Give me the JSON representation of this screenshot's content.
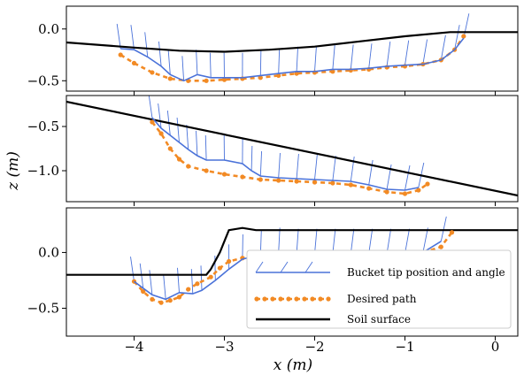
{
  "chart_data": {
    "type": "line",
    "xlabel": "x  (m)",
    "ylabel": "z  (m)",
    "xlim": [
      -4.75,
      0.25
    ],
    "xticks": [
      -4,
      -3,
      -2,
      -1,
      0
    ],
    "xtick_labels": [
      "−4",
      "−3",
      "−2",
      "−1",
      "0"
    ],
    "legend": {
      "placement": "lower-right of bottom panel",
      "entries": [
        {
          "label": "Bucket tip position and angle",
          "color": "#4a72d9",
          "style": "solid-with-angle-marks"
        },
        {
          "label": "Desired path",
          "color": "#f28a24",
          "style": "dashed-dots"
        },
        {
          "label": "Soil surface",
          "color": "#000000",
          "style": "solid-thick"
        }
      ]
    },
    "panels": [
      {
        "ylim": [
          -0.6,
          0.22
        ],
        "yticks": [
          0.0,
          -0.5
        ],
        "ytick_labels": [
          "0.0",
          "−0.5"
        ],
        "soil_surface": {
          "x": [
            -4.75,
            -4.0,
            -3.5,
            -3.0,
            -2.5,
            -2.0,
            -1.5,
            -1.0,
            -0.5,
            0.25
          ],
          "y": [
            -0.13,
            -0.18,
            -0.21,
            -0.22,
            -0.2,
            -0.17,
            -0.12,
            -0.07,
            -0.03,
            -0.03
          ]
        },
        "desired_path": {
          "x": [
            -4.15,
            -4.0,
            -3.8,
            -3.6,
            -3.4,
            -3.2,
            -3.0,
            -2.8,
            -2.6,
            -2.4,
            -2.2,
            -2.0,
            -1.8,
            -1.6,
            -1.4,
            -1.2,
            -1.0,
            -0.8,
            -0.6,
            -0.45,
            -0.35
          ],
          "y": [
            -0.25,
            -0.33,
            -0.42,
            -0.48,
            -0.5,
            -0.5,
            -0.49,
            -0.48,
            -0.47,
            -0.45,
            -0.43,
            -0.42,
            -0.41,
            -0.4,
            -0.39,
            -0.37,
            -0.36,
            -0.34,
            -0.3,
            -0.2,
            -0.07
          ]
        },
        "bucket_tip": {
          "x": [
            -4.15,
            -4.0,
            -3.85,
            -3.7,
            -3.6,
            -3.45,
            -3.3,
            -3.15,
            -3.0,
            -2.8,
            -2.6,
            -2.4,
            -2.2,
            -2.0,
            -1.8,
            -1.6,
            -1.4,
            -1.2,
            -1.0,
            -0.8,
            -0.6,
            -0.45,
            -0.35
          ],
          "y": [
            -0.19,
            -0.2,
            -0.27,
            -0.36,
            -0.44,
            -0.5,
            -0.44,
            -0.47,
            -0.47,
            -0.47,
            -0.45,
            -0.43,
            -0.41,
            -0.41,
            -0.39,
            -0.39,
            -0.38,
            -0.36,
            -0.35,
            -0.34,
            -0.3,
            -0.2,
            -0.09
          ]
        }
      },
      {
        "ylim": [
          -1.35,
          -0.15
        ],
        "yticks": [
          -0.5,
          -1.0
        ],
        "ytick_labels": [
          "−0.5",
          "−1.0"
        ],
        "soil_surface": {
          "x": [
            -4.75,
            0.25
          ],
          "y": [
            -0.22,
            -1.28
          ]
        },
        "desired_path": {
          "x": [
            -3.8,
            -3.7,
            -3.6,
            -3.5,
            -3.4,
            -3.2,
            -3.0,
            -2.8,
            -2.6,
            -2.4,
            -2.2,
            -2.0,
            -1.8,
            -1.6,
            -1.4,
            -1.2,
            -1.0,
            -0.85,
            -0.75
          ],
          "y": [
            -0.45,
            -0.58,
            -0.75,
            -0.87,
            -0.95,
            -1.0,
            -1.04,
            -1.07,
            -1.1,
            -1.11,
            -1.12,
            -1.13,
            -1.14,
            -1.16,
            -1.2,
            -1.24,
            -1.26,
            -1.22,
            -1.15
          ]
        },
        "bucket_tip": {
          "x": [
            -3.8,
            -3.7,
            -3.6,
            -3.5,
            -3.4,
            -3.3,
            -3.2,
            -3.0,
            -2.8,
            -2.7,
            -2.6,
            -2.4,
            -2.2,
            -2.0,
            -1.8,
            -1.6,
            -1.4,
            -1.2,
            -1.0,
            -0.85
          ],
          "y": [
            -0.4,
            -0.52,
            -0.6,
            -0.68,
            -0.76,
            -0.83,
            -0.88,
            -0.88,
            -0.92,
            -1.0,
            -1.06,
            -1.08,
            -1.09,
            -1.1,
            -1.11,
            -1.12,
            -1.16,
            -1.21,
            -1.22,
            -1.19
          ]
        }
      },
      {
        "ylim": [
          -0.75,
          0.4
        ],
        "yticks": [
          0.0,
          -0.5
        ],
        "ytick_labels": [
          "0.0",
          "−0.5"
        ],
        "soil_surface": {
          "x": [
            -4.75,
            -3.2,
            -3.15,
            -3.05,
            -2.95,
            -2.8,
            -2.65,
            -0.5,
            0.25
          ],
          "y": [
            -0.2,
            -0.2,
            -0.15,
            0.0,
            0.2,
            0.22,
            0.2,
            0.2,
            0.2
          ]
        },
        "desired_path": {
          "x": [
            -4.0,
            -3.9,
            -3.8,
            -3.7,
            -3.6,
            -3.5,
            -3.4,
            -3.3,
            -3.15,
            -3.05,
            -2.95,
            -2.8,
            -2.6,
            -2.4,
            -2.2,
            -2.0,
            -1.8,
            -1.6,
            -1.4,
            -1.2,
            -1.0,
            -0.8,
            -0.6,
            -0.48
          ],
          "y": [
            -0.26,
            -0.35,
            -0.42,
            -0.45,
            -0.43,
            -0.4,
            -0.33,
            -0.28,
            -0.22,
            -0.14,
            -0.08,
            -0.05,
            -0.03,
            -0.02,
            -0.02,
            -0.02,
            -0.02,
            -0.02,
            -0.02,
            -0.02,
            -0.02,
            0.0,
            0.05,
            0.18
          ]
        },
        "bucket_tip": {
          "x": [
            -4.0,
            -3.9,
            -3.8,
            -3.65,
            -3.5,
            -3.35,
            -3.25,
            -3.1,
            -2.95,
            -2.8,
            -2.6,
            -2.4,
            -2.2,
            -2.0,
            -1.8,
            -1.6,
            -1.4,
            -1.2,
            -1.0,
            -0.8,
            -0.6
          ],
          "y": [
            -0.26,
            -0.32,
            -0.38,
            -0.42,
            -0.36,
            -0.37,
            -0.34,
            -0.25,
            -0.15,
            -0.06,
            -0.02,
            0.0,
            -0.01,
            -0.01,
            -0.01,
            -0.01,
            -0.01,
            -0.01,
            -0.01,
            0.0,
            0.1
          ]
        }
      }
    ]
  }
}
